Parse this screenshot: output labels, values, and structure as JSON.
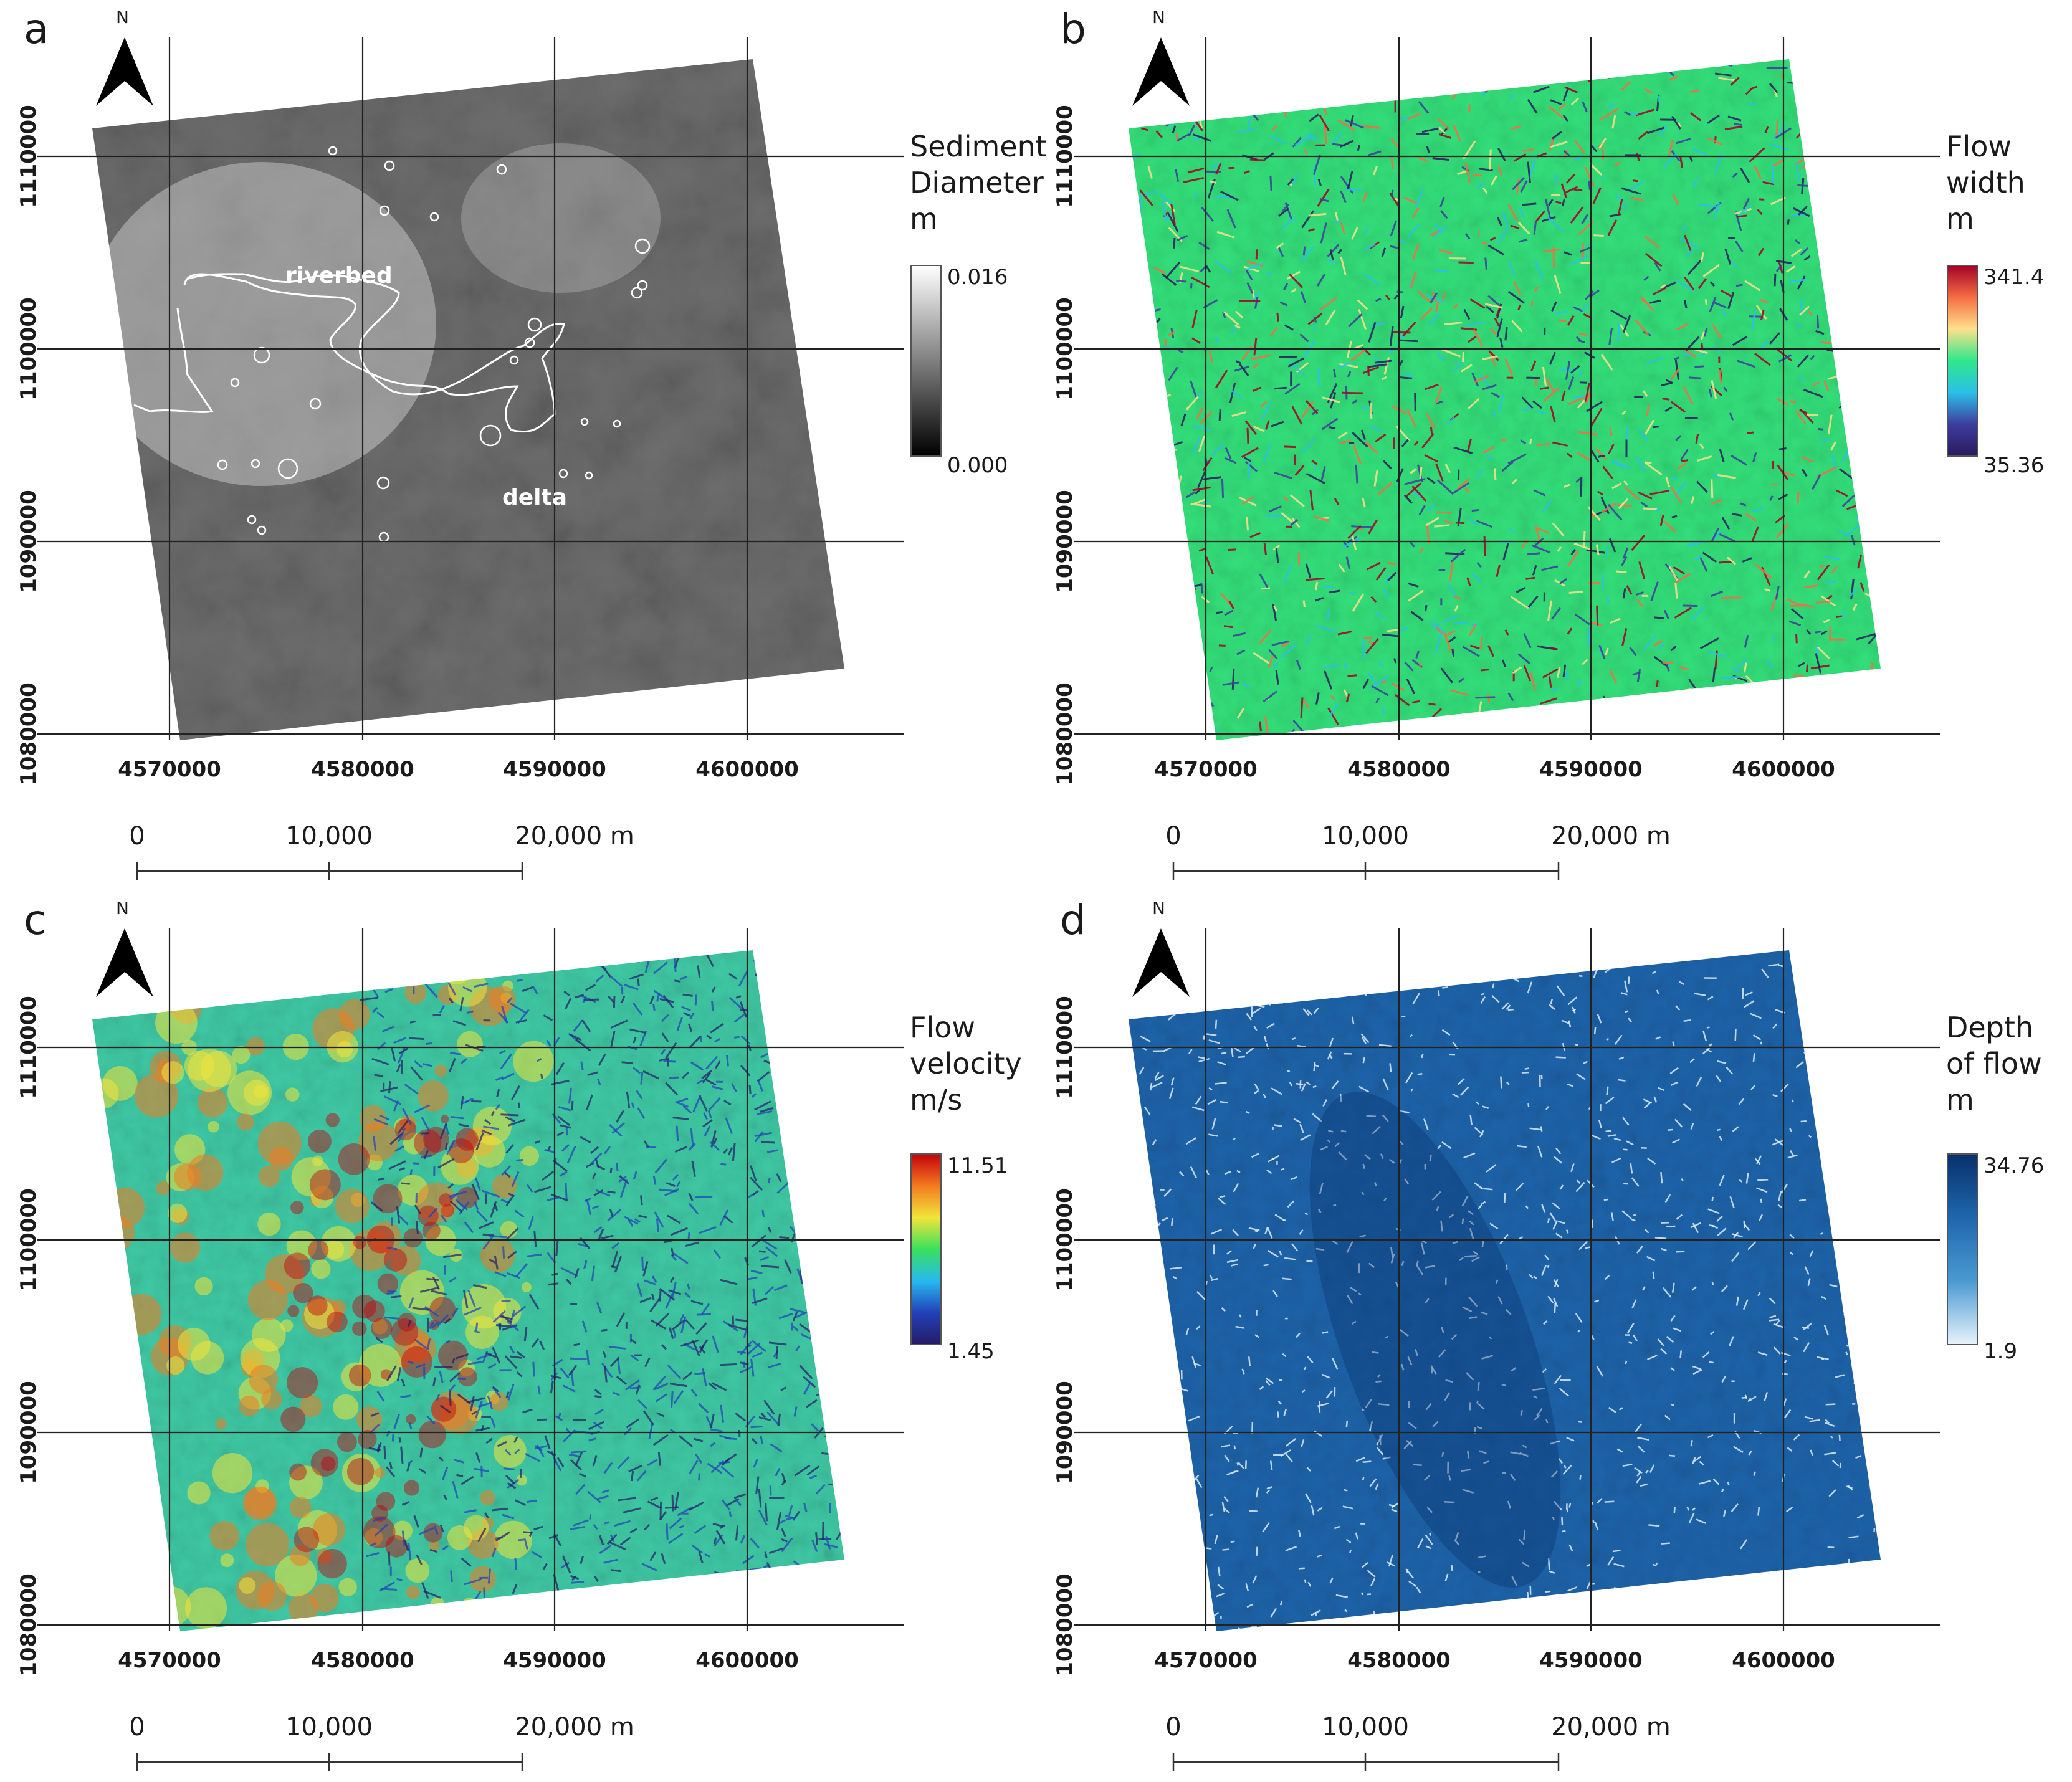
{
  "panels": [
    {
      "letter": "a",
      "legend_title": [
        "Sediment",
        "Diameter",
        "m"
      ],
      "legend_max": "0.016",
      "legend_min": "0.000",
      "gradient": [
        "#ffffff",
        "#000000"
      ],
      "terrain_base": "#6e6e6e",
      "labels": {
        "riverbed": "riverbed",
        "delta": "delta"
      }
    },
    {
      "letter": "b",
      "legend_title": [
        "Flow",
        "width",
        "m"
      ],
      "legend_max": "341.4",
      "legend_min": "35.36",
      "gradient": [
        "#a50026",
        "#f46d43",
        "#fee08b",
        "#2ee88a",
        "#2bc0e8",
        "#3d3d9e",
        "#2a1a5e"
      ],
      "terrain_base": "#33e07a"
    },
    {
      "letter": "c",
      "legend_title": [
        "Flow",
        "velocity",
        "m/s"
      ],
      "legend_max": "11.51",
      "legend_min": "1.45",
      "gradient": [
        "#c4000b",
        "#f37a1f",
        "#f3e43a",
        "#39e05c",
        "#27b9f0",
        "#2340b8",
        "#241b66"
      ],
      "terrain_base": "#3fc9a4"
    },
    {
      "letter": "d",
      "legend_title": [
        "Depth",
        "of flow",
        "m"
      ],
      "legend_max": "34.76",
      "legend_min": "1.9",
      "gradient": [
        "#08306b",
        "#1f66ad",
        "#4a9ad1",
        "#e8f3fb"
      ],
      "terrain_base": "#1d63aa"
    }
  ],
  "axes": {
    "x_ticks": [
      "4570000",
      "4580000",
      "4590000",
      "4600000"
    ],
    "y_ticks": [
      "1110000",
      "1100000",
      "1090000",
      "1080000"
    ]
  },
  "scale_bar": {
    "labels": [
      "0",
      "10,000",
      "20,000 m"
    ]
  },
  "north_arrow": {
    "label": "N",
    "icon": "north-arrow-icon"
  }
}
